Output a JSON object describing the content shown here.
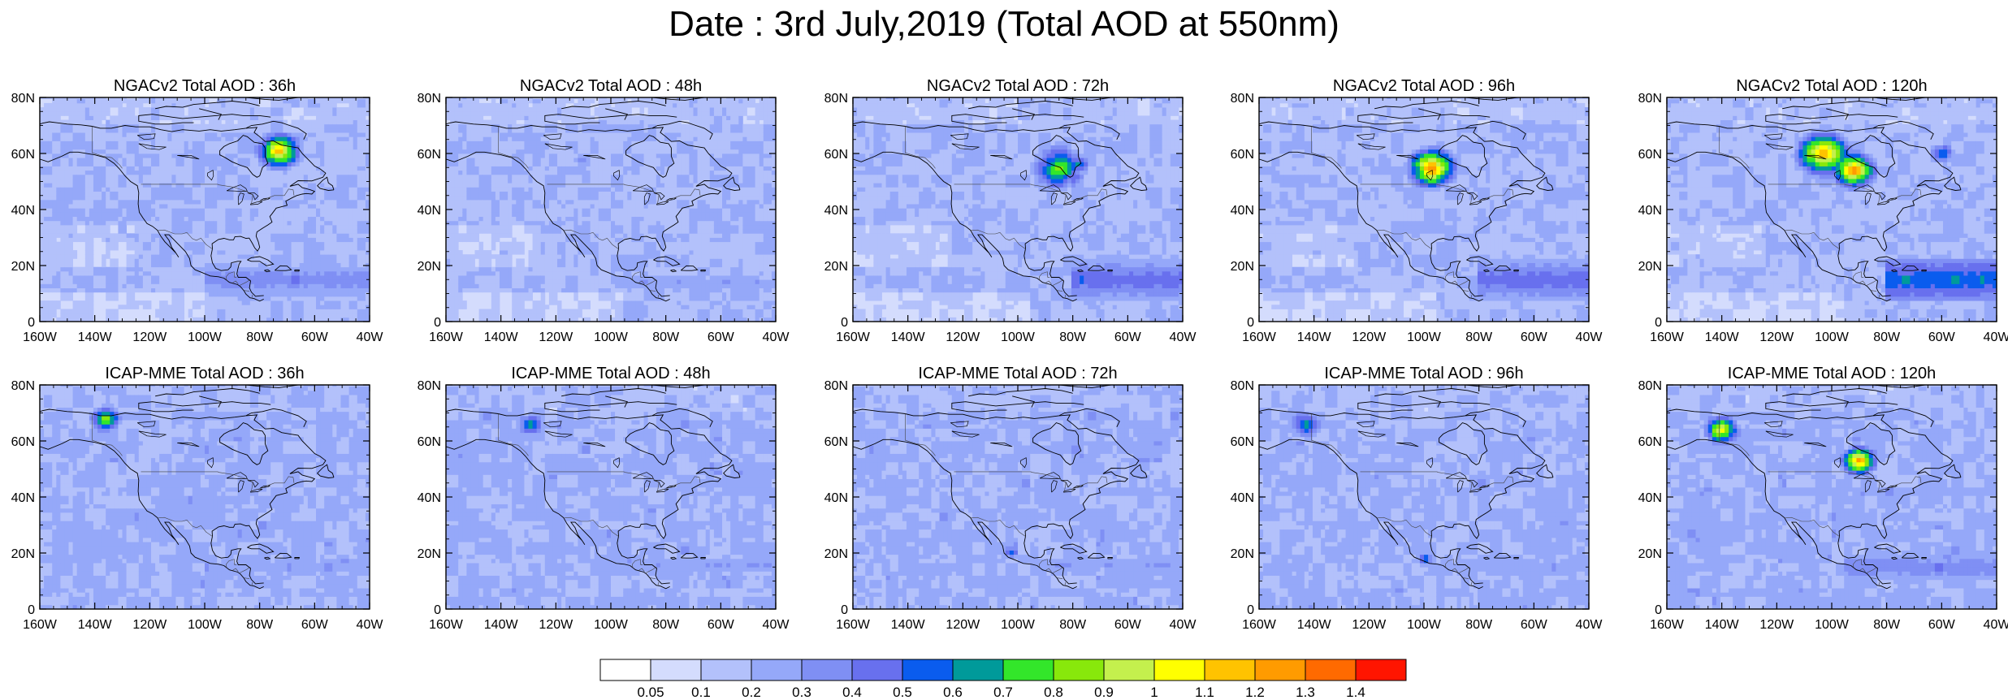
{
  "page": {
    "title": "Date : 3rd July,2019 (Total AOD at 550nm)"
  },
  "map_axes": {
    "lon_range": [
      -160,
      -40
    ],
    "lat_range": [
      0,
      80
    ],
    "lon_ticks": [
      "160W",
      "140W",
      "120W",
      "100W",
      "80W",
      "60W",
      "40W"
    ],
    "lat_ticks": [
      "0",
      "20N",
      "40N",
      "60N",
      "80N"
    ]
  },
  "panels": [
    {
      "title": "NGACv2 Total AOD : 36h",
      "plumes": [
        {
          "lon": -73,
          "lat": 61,
          "r": 5,
          "level": 12
        },
        {
          "lon": -72,
          "lat": 62,
          "r": 2.5,
          "level": 6
        }
      ],
      "bands": [
        {
          "lat": 15,
          "from": -100,
          "to": -40,
          "level": 4
        }
      ]
    },
    {
      "title": "NGACv2 Total AOD : 48h",
      "plumes": [
        {
          "lon": -110,
          "lat": 58,
          "r": 5,
          "level": 3
        }
      ],
      "bands": [
        {
          "lat": 14,
          "from": -95,
          "to": -40,
          "level": 3
        }
      ]
    },
    {
      "title": "NGACv2 Total AOD : 72h",
      "plumes": [
        {
          "lon": -85,
          "lat": 55,
          "r": 6,
          "level": 9
        },
        {
          "lon": -78,
          "lat": 56,
          "r": 3,
          "level": 7
        }
      ],
      "bands": [
        {
          "lat": 15,
          "from": -80,
          "to": -40,
          "level": 5
        }
      ]
    },
    {
      "title": "NGACv2 Total AOD : 96h",
      "plumes": [
        {
          "lon": -97,
          "lat": 55,
          "r": 5.5,
          "level": 13
        },
        {
          "lon": -95,
          "lat": 53,
          "r": 3,
          "level": 7
        }
      ],
      "bands": [
        {
          "lat": 15,
          "from": -80,
          "to": -40,
          "level": 5
        }
      ]
    },
    {
      "title": "NGACv2 Total AOD : 120h",
      "plumes": [
        {
          "lon": -103,
          "lat": 60,
          "r": 6,
          "level": 13
        },
        {
          "lon": -92,
          "lat": 54,
          "r": 5,
          "level": 13
        },
        {
          "lon": -60,
          "lat": 60,
          "r": 3,
          "level": 7
        }
      ],
      "bands": [
        {
          "lat": 15,
          "from": -80,
          "to": -40,
          "level": 6
        }
      ]
    },
    {
      "title": "ICAP-MME Total AOD : 36h",
      "plumes": [
        {
          "lon": -136,
          "lat": 68,
          "r": 3.5,
          "level": 10
        }
      ],
      "bands": [
        {
          "lat": 15,
          "from": -100,
          "to": -40,
          "level": 3
        }
      ]
    },
    {
      "title": "ICAP-MME Total AOD : 48h",
      "plumes": [
        {
          "lon": -129,
          "lat": 66,
          "r": 3,
          "level": 8
        }
      ],
      "bands": [
        {
          "lat": 16,
          "from": -95,
          "to": -40,
          "level": 3
        }
      ]
    },
    {
      "title": "ICAP-MME Total AOD : 72h",
      "plumes": [
        {
          "lon": -102,
          "lat": 20,
          "r": 2,
          "level": 6
        }
      ],
      "bands": [
        {
          "lat": 16,
          "from": -95,
          "to": -40,
          "level": 3
        }
      ]
    },
    {
      "title": "ICAP-MME Total AOD : 96h",
      "plumes": [
        {
          "lon": -143,
          "lat": 66,
          "r": 4,
          "level": 7
        },
        {
          "lon": -100,
          "lat": 18,
          "r": 2,
          "level": 7
        }
      ],
      "bands": [
        {
          "lat": 15,
          "from": -95,
          "to": -40,
          "level": 3
        }
      ]
    },
    {
      "title": "ICAP-MME Total AOD : 120h",
      "plumes": [
        {
          "lon": -140,
          "lat": 64,
          "r": 4,
          "level": 11
        },
        {
          "lon": -90,
          "lat": 53,
          "r": 4,
          "level": 13
        }
      ],
      "bands": [
        {
          "lat": 15,
          "from": -95,
          "to": -40,
          "level": 4
        }
      ]
    }
  ],
  "colorbar": {
    "colors": [
      "#ffffff",
      "#d4dcfd",
      "#b3c1fb",
      "#95a8f9",
      "#7f8ff4",
      "#6870ee",
      "#0a5cee",
      "#009a9a",
      "#33e62a",
      "#88e80b",
      "#c4f04d",
      "#ffff00",
      "#ffc300",
      "#ff9b00",
      "#ff6a00",
      "#ff1500"
    ],
    "labels": [
      "0.05",
      "0.1",
      "0.2",
      "0.3",
      "0.4",
      "0.5",
      "0.6",
      "0.7",
      "0.8",
      "0.9",
      "1",
      "1.1",
      "1.2",
      "1.3",
      "1.4"
    ]
  }
}
